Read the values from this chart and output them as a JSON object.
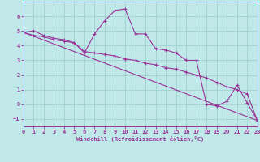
{
  "bg_color": "#c0e8e8",
  "line_color": "#993399",
  "grid_color": "#99cccc",
  "xlim": [
    0,
    23
  ],
  "ylim": [
    -1.5,
    7.0
  ],
  "xticks": [
    0,
    1,
    2,
    3,
    4,
    5,
    6,
    7,
    8,
    9,
    10,
    11,
    12,
    13,
    14,
    15,
    16,
    17,
    18,
    19,
    20,
    21,
    22,
    23
  ],
  "yticks": [
    -1,
    0,
    1,
    2,
    3,
    4,
    5,
    6
  ],
  "line1_x": [
    0,
    1,
    2,
    3,
    4,
    5,
    6,
    7,
    8,
    9,
    10,
    11,
    12,
    13,
    14,
    15,
    16,
    17,
    18,
    19,
    20,
    21,
    22,
    23
  ],
  "line1_y": [
    4.9,
    5.0,
    4.7,
    4.5,
    4.4,
    4.2,
    3.5,
    4.8,
    5.7,
    6.4,
    6.5,
    4.8,
    4.8,
    3.8,
    3.7,
    3.5,
    3.0,
    3.0,
    0.0,
    -0.1,
    0.2,
    1.3,
    0.1,
    -1.1
  ],
  "line2_x": [
    0,
    1,
    2,
    3,
    4,
    5,
    6,
    7,
    8,
    9,
    10,
    11,
    12,
    13,
    14,
    15,
    16,
    17,
    18,
    19,
    20,
    21,
    22,
    23
  ],
  "line2_y": [
    4.9,
    4.7,
    4.6,
    4.4,
    4.3,
    4.2,
    3.6,
    3.5,
    3.4,
    3.3,
    3.1,
    3.0,
    2.8,
    2.7,
    2.5,
    2.4,
    2.2,
    2.0,
    1.8,
    1.5,
    1.2,
    1.0,
    0.7,
    -1.1
  ],
  "line3_x": [
    0,
    23
  ],
  "line3_y": [
    4.9,
    -1.1
  ],
  "xlabel": "Windchill (Refroidissement éolien,°C)"
}
